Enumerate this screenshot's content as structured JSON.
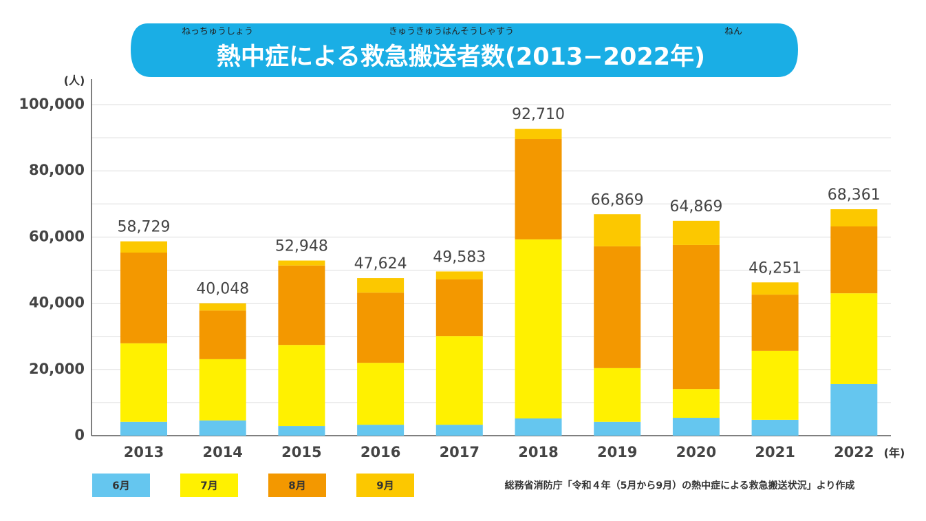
{
  "chart_data": {
    "type": "stacked-bar",
    "title": "熱中症による救急搬送者数(2013−2022年)",
    "title_ruby": [
      "ねっちゅうしょう",
      "きゅうきゅうはんそうしゃすう",
      "ねん"
    ],
    "y_unit": "(人)",
    "x_unit": "(年)",
    "source": "総務省消防庁「令和４年（5月から9月）の熱中症による救急搬送状況」より作成",
    "categories": [
      "2013",
      "2014",
      "2015",
      "2016",
      "2017",
      "2018",
      "2019",
      "2020",
      "2021",
      "2022"
    ],
    "series": [
      {
        "name": "6月",
        "color": "#65c6ef",
        "values": [
          4200,
          4600,
          2900,
          3300,
          3300,
          5200,
          4200,
          5400,
          4800,
          15600
        ]
      },
      {
        "name": "7月",
        "color": "#fff100",
        "values": [
          23700,
          18500,
          24500,
          18700,
          26800,
          54100,
          16200,
          8700,
          20800,
          27400
        ]
      },
      {
        "name": "8月",
        "color": "#f39800",
        "values": [
          27400,
          14700,
          24000,
          21200,
          17100,
          30300,
          36800,
          43500,
          17000,
          20200
        ]
      },
      {
        "name": "9月",
        "color": "#fcc800",
        "values": [
          3400,
          2200,
          1500,
          4400,
          2400,
          3100,
          9700,
          7300,
          3700,
          5200
        ]
      }
    ],
    "totals": [
      58729,
      40048,
      52948,
      47624,
      49583,
      92710,
      66869,
      64869,
      46251,
      68361
    ],
    "total_labels": [
      "58,729",
      "40,048",
      "52,948",
      "47,624",
      "49,583",
      "92,710",
      "66,869",
      "64,869",
      "46,251",
      "68,361"
    ],
    "ylim": [
      0,
      100000
    ],
    "yticks": [
      0,
      {
        "value": 20000,
        "label": "20,000"
      },
      {
        "value": 40000,
        "label": "40,000"
      },
      {
        "value": 60000,
        "label": "60,000"
      },
      {
        "value": 80000,
        "label": "80,000"
      },
      {
        "value": 100000,
        "label": "100,000"
      }
    ],
    "minor_yticks": [
      10000,
      30000,
      50000,
      70000,
      90000
    ],
    "grid": true
  }
}
